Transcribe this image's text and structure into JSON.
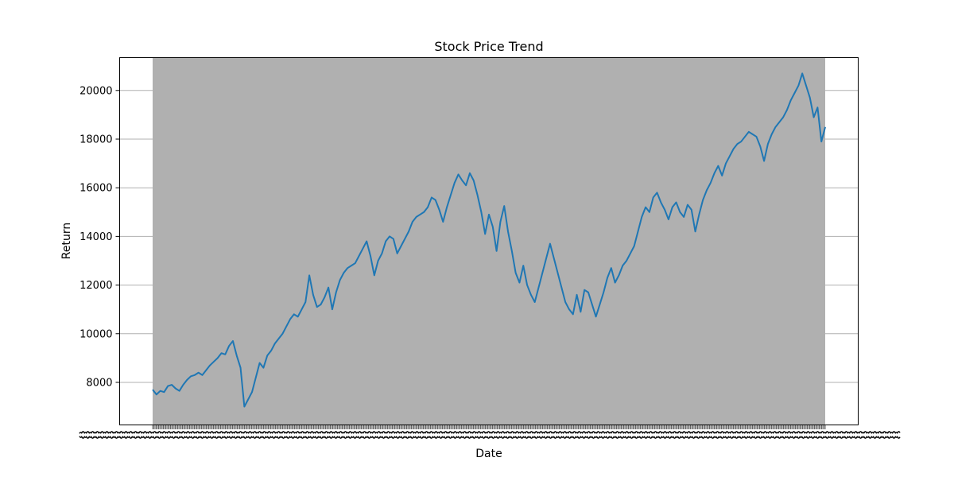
{
  "chart_data": {
    "type": "line",
    "title": "Stock Price Trend",
    "xlabel": "Date",
    "ylabel": "Return",
    "ylim": [
      6250,
      21350
    ],
    "yticks": [
      8000,
      10000,
      12000,
      14000,
      16000,
      18000,
      20000
    ],
    "grid": "horizontal",
    "x_tick_labels_note": "x tick labels are too dense to read",
    "colors": {
      "line": "#1f77b4",
      "shade": "#b0b0b0",
      "grid": "#b0b0b0"
    },
    "series": [
      {
        "values": [
          7700,
          7500,
          7650,
          7600,
          7850,
          7900,
          7750,
          7650,
          7900,
          8100,
          8250,
          8300,
          8400,
          8300,
          8500,
          8700,
          8850,
          9000,
          9200,
          9150,
          9500,
          9700,
          9100,
          8600,
          7000,
          7300,
          7600,
          8200,
          8800,
          8600,
          9100,
          9300,
          9600,
          9800,
          10000,
          10300,
          10600,
          10800,
          10700,
          11000,
          11300,
          12400,
          11600,
          11100,
          11200,
          11500,
          11900,
          11000,
          11700,
          12200,
          12500,
          12700,
          12800,
          12900,
          13200,
          13500,
          13800,
          13200,
          12400,
          13000,
          13300,
          13800,
          14000,
          13900,
          13300,
          13600,
          13900,
          14200,
          14600,
          14800,
          14900,
          15000,
          15200,
          15600,
          15500,
          15100,
          14600,
          15200,
          15700,
          16200,
          16550,
          16300,
          16100,
          16600,
          16300,
          15700,
          15000,
          14100,
          14900,
          14400,
          13400,
          14600,
          15250,
          14200,
          13400,
          12500,
          12100,
          12800,
          12000,
          11600,
          11300,
          11900,
          12500,
          13100,
          13700,
          13100,
          12500,
          11900,
          11300,
          11000,
          10800,
          11600,
          10900,
          11800,
          11700,
          11200,
          10700,
          11200,
          11700,
          12300,
          12700,
          12100,
          12400,
          12800,
          13000,
          13300,
          13600,
          14200,
          14800,
          15200,
          15000,
          15600,
          15800,
          15400,
          15100,
          14700,
          15200,
          15400,
          15000,
          14800,
          15300,
          15100,
          14200,
          14900,
          15500,
          15900,
          16200,
          16600,
          16900,
          16500,
          17000,
          17300,
          17600,
          17800,
          17900,
          18100,
          18300,
          18200,
          18100,
          17700,
          17100,
          17800,
          18200,
          18500,
          18700,
          18900,
          19200,
          19600,
          19900,
          20200,
          20700,
          20200,
          19700,
          18900,
          19300,
          17900,
          18500
        ]
      }
    ]
  }
}
